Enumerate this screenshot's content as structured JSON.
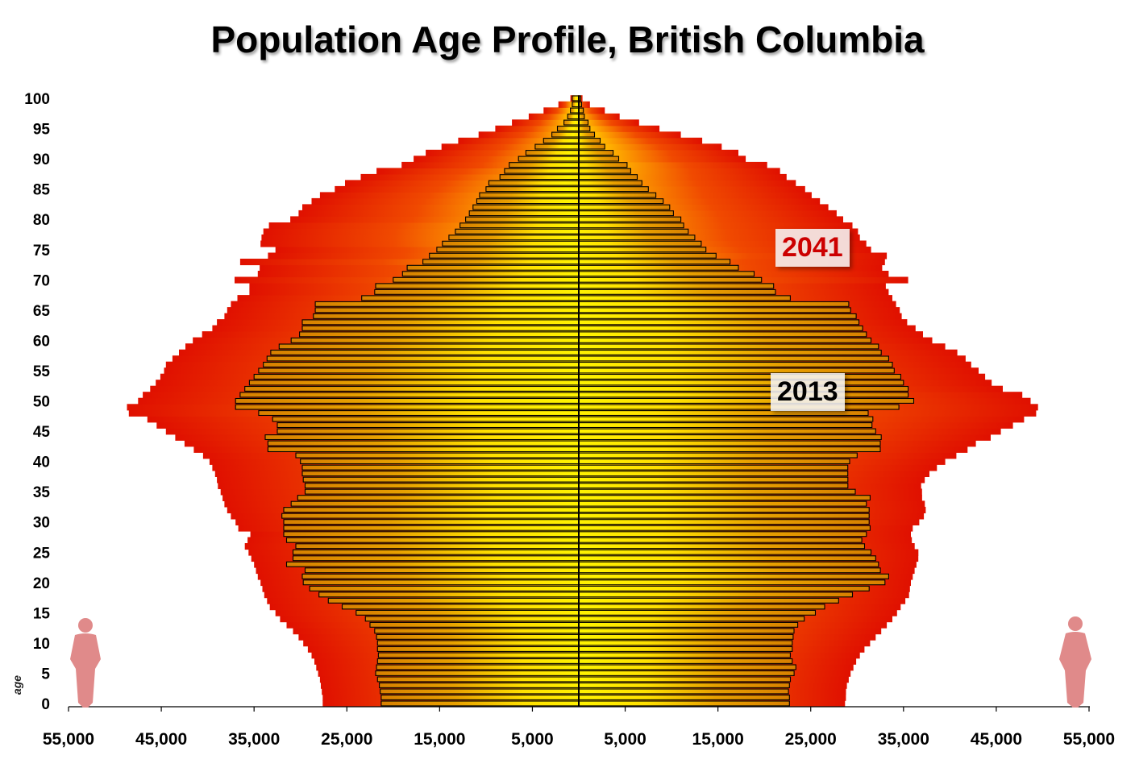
{
  "title": "Population Age Profile, British Columbia",
  "chart_data": {
    "type": "bar",
    "orientation": "horizontal-pyramid",
    "title": "Population Age Profile, British Columbia",
    "ylabel": "age",
    "y_ticks": [
      "0",
      "5",
      "10",
      "15",
      "20",
      "25",
      "30",
      "35",
      "40",
      "45",
      "50",
      "55",
      "60",
      "65",
      "70",
      "75",
      "80",
      "85",
      "90",
      "95",
      "100"
    ],
    "x_ticks": [
      "55,000",
      "45,000",
      "35,000",
      "25,000",
      "15,000",
      "5,000",
      "5,000",
      "15,000",
      "25,000",
      "35,000",
      "45,000",
      "55,000"
    ],
    "xlim": [
      -55000,
      55000
    ],
    "ylim": [
      0,
      100
    ],
    "colors": {
      "2013_fill": "#f5c400",
      "2013_edge": "#000000",
      "2041_outer": "#e01000",
      "2041_inner": "#ffd800"
    },
    "series": [
      {
        "name": "2013",
        "ages": [
          0,
          1,
          2,
          3,
          4,
          5,
          6,
          7,
          8,
          9,
          10,
          11,
          12,
          13,
          14,
          15,
          16,
          17,
          18,
          19,
          20,
          21,
          22,
          23,
          24,
          25,
          26,
          27,
          28,
          29,
          30,
          31,
          32,
          33,
          34,
          35,
          36,
          37,
          38,
          39,
          40,
          41,
          42,
          43,
          44,
          45,
          46,
          47,
          48,
          49,
          50,
          51,
          52,
          53,
          54,
          55,
          56,
          57,
          58,
          59,
          60,
          61,
          62,
          63,
          64,
          65,
          66,
          67,
          68,
          69,
          70,
          71,
          72,
          73,
          74,
          75,
          76,
          77,
          78,
          79,
          80,
          81,
          82,
          83,
          84,
          85,
          86,
          87,
          88,
          89,
          90,
          91,
          92,
          93,
          94,
          95,
          96,
          97,
          98,
          99,
          100
        ],
        "left": [
          21300,
          21300,
          21400,
          21500,
          21700,
          21900,
          21800,
          21700,
          21600,
          21700,
          21700,
          21800,
          22000,
          22500,
          23000,
          24000,
          25500,
          27000,
          28000,
          29000,
          29700,
          29800,
          29500,
          31500,
          30800,
          30800,
          30500,
          31500,
          31800,
          31800,
          31800,
          32000,
          31800,
          31000,
          30300,
          29500,
          29500,
          29700,
          29800,
          29800,
          30000,
          30500,
          33500,
          33500,
          33800,
          32500,
          32500,
          33000,
          34500,
          37000,
          37000,
          36500,
          36000,
          35500,
          35000,
          34500,
          34000,
          33600,
          33200,
          32300,
          31000,
          30100,
          29800,
          29800,
          28600,
          28400,
          28400,
          23400,
          22000,
          21900,
          20000,
          19000,
          18500,
          16800,
          16100,
          15300,
          14700,
          14000,
          13300,
          12800,
          12200,
          11800,
          11400,
          11000,
          10700,
          10000,
          9700,
          8500,
          8000,
          7500,
          6500,
          5700,
          4700,
          3800,
          2900,
          2300,
          1600,
          1200,
          900,
          700,
          700
        ],
        "right": [
          22700,
          22700,
          22600,
          22700,
          22800,
          23200,
          23400,
          23000,
          22800,
          23000,
          23000,
          23100,
          23200,
          23600,
          24300,
          25500,
          26500,
          28000,
          29500,
          31300,
          33000,
          33400,
          32500,
          32300,
          32000,
          31500,
          30800,
          30500,
          31000,
          31400,
          31300,
          31300,
          31300,
          31000,
          31400,
          29800,
          29000,
          29000,
          29000,
          29000,
          29200,
          30000,
          32500,
          32500,
          32600,
          32000,
          31600,
          31700,
          31200,
          34500,
          36100,
          35500,
          35500,
          35000,
          34700,
          34000,
          33800,
          33400,
          32600,
          32300,
          31500,
          31000,
          30600,
          30200,
          29900,
          29300,
          29100,
          22800,
          21200,
          21000,
          19700,
          18900,
          17200,
          16300,
          14800,
          13700,
          13200,
          12500,
          11800,
          11300,
          11000,
          10200,
          9800,
          9100,
          8300,
          7500,
          6800,
          6300,
          5600,
          5200,
          4300,
          3700,
          2800,
          2300,
          1700,
          1200,
          1000,
          600,
          500,
          300,
          200
        ]
      },
      {
        "name": "2041",
        "ages": [
          0,
          1,
          2,
          3,
          4,
          5,
          6,
          7,
          8,
          9,
          10,
          11,
          12,
          13,
          14,
          15,
          16,
          17,
          18,
          19,
          20,
          21,
          22,
          23,
          24,
          25,
          26,
          27,
          28,
          29,
          30,
          31,
          32,
          33,
          34,
          35,
          36,
          37,
          38,
          39,
          40,
          41,
          42,
          43,
          44,
          45,
          46,
          47,
          48,
          49,
          50,
          51,
          52,
          53,
          54,
          55,
          56,
          57,
          58,
          59,
          60,
          61,
          62,
          63,
          64,
          65,
          66,
          67,
          68,
          69,
          70,
          71,
          72,
          73,
          74,
          75,
          76,
          77,
          78,
          79,
          80,
          81,
          82,
          83,
          84,
          85,
          86,
          87,
          88,
          89,
          90,
          91,
          92,
          93,
          94,
          95,
          96,
          97,
          98,
          99,
          100
        ],
        "left": [
          27600,
          27600,
          27700,
          27800,
          27900,
          28100,
          28300,
          28500,
          28800,
          29200,
          29700,
          30200,
          30800,
          31500,
          32200,
          32700,
          33300,
          33600,
          33900,
          34100,
          34300,
          34600,
          34800,
          35000,
          35300,
          35600,
          36000,
          35700,
          35400,
          36700,
          37000,
          37500,
          37900,
          38200,
          38400,
          38600,
          38900,
          39000,
          39200,
          39500,
          39800,
          40500,
          41500,
          42500,
          43500,
          44500,
          45500,
          46500,
          48500,
          48700,
          47500,
          47000,
          46200,
          45600,
          45100,
          44700,
          44500,
          43800,
          43100,
          42400,
          41600,
          40600,
          39500,
          39000,
          38200,
          37900,
          37500,
          36800,
          35500,
          35500,
          37100,
          34600,
          34400,
          36500,
          33500,
          32700,
          34300,
          34200,
          34000,
          33400,
          31100,
          30200,
          29800,
          28800,
          27900,
          26300,
          25200,
          23500,
          21800,
          19100,
          17800,
          16500,
          14800,
          13000,
          10800,
          9000,
          7200,
          5400,
          3800,
          2200,
          900
        ],
        "right": [
          28700,
          28800,
          28800,
          28900,
          29100,
          29300,
          29600,
          29900,
          30300,
          30800,
          31400,
          32000,
          32600,
          33200,
          33800,
          34300,
          34700,
          35200,
          35600,
          35700,
          35800,
          36000,
          36200,
          36400,
          36600,
          36600,
          36200,
          35900,
          35800,
          36000,
          36700,
          37200,
          37400,
          37300,
          37000,
          37000,
          36900,
          37300,
          37800,
          38600,
          39500,
          40700,
          41900,
          42800,
          44400,
          45500,
          46800,
          48000,
          49300,
          49500,
          48700,
          47800,
          45700,
          44500,
          43800,
          43100,
          42300,
          41700,
          40800,
          39500,
          38100,
          37100,
          36300,
          35400,
          34800,
          34600,
          34200,
          33800,
          33400,
          33100,
          35500,
          33400,
          32700,
          33000,
          33200,
          31500,
          31000,
          30300,
          30100,
          29500,
          28500,
          27800,
          26900,
          26000,
          25100,
          24400,
          23400,
          22400,
          21700,
          20300,
          18000,
          17200,
          15400,
          13300,
          11000,
          8700,
          6500,
          4400,
          2800,
          1200,
          400
        ]
      }
    ],
    "labels": [
      {
        "text": "2041",
        "color": "#cc0000"
      },
      {
        "text": "2013",
        "color": "#000000"
      }
    ]
  }
}
